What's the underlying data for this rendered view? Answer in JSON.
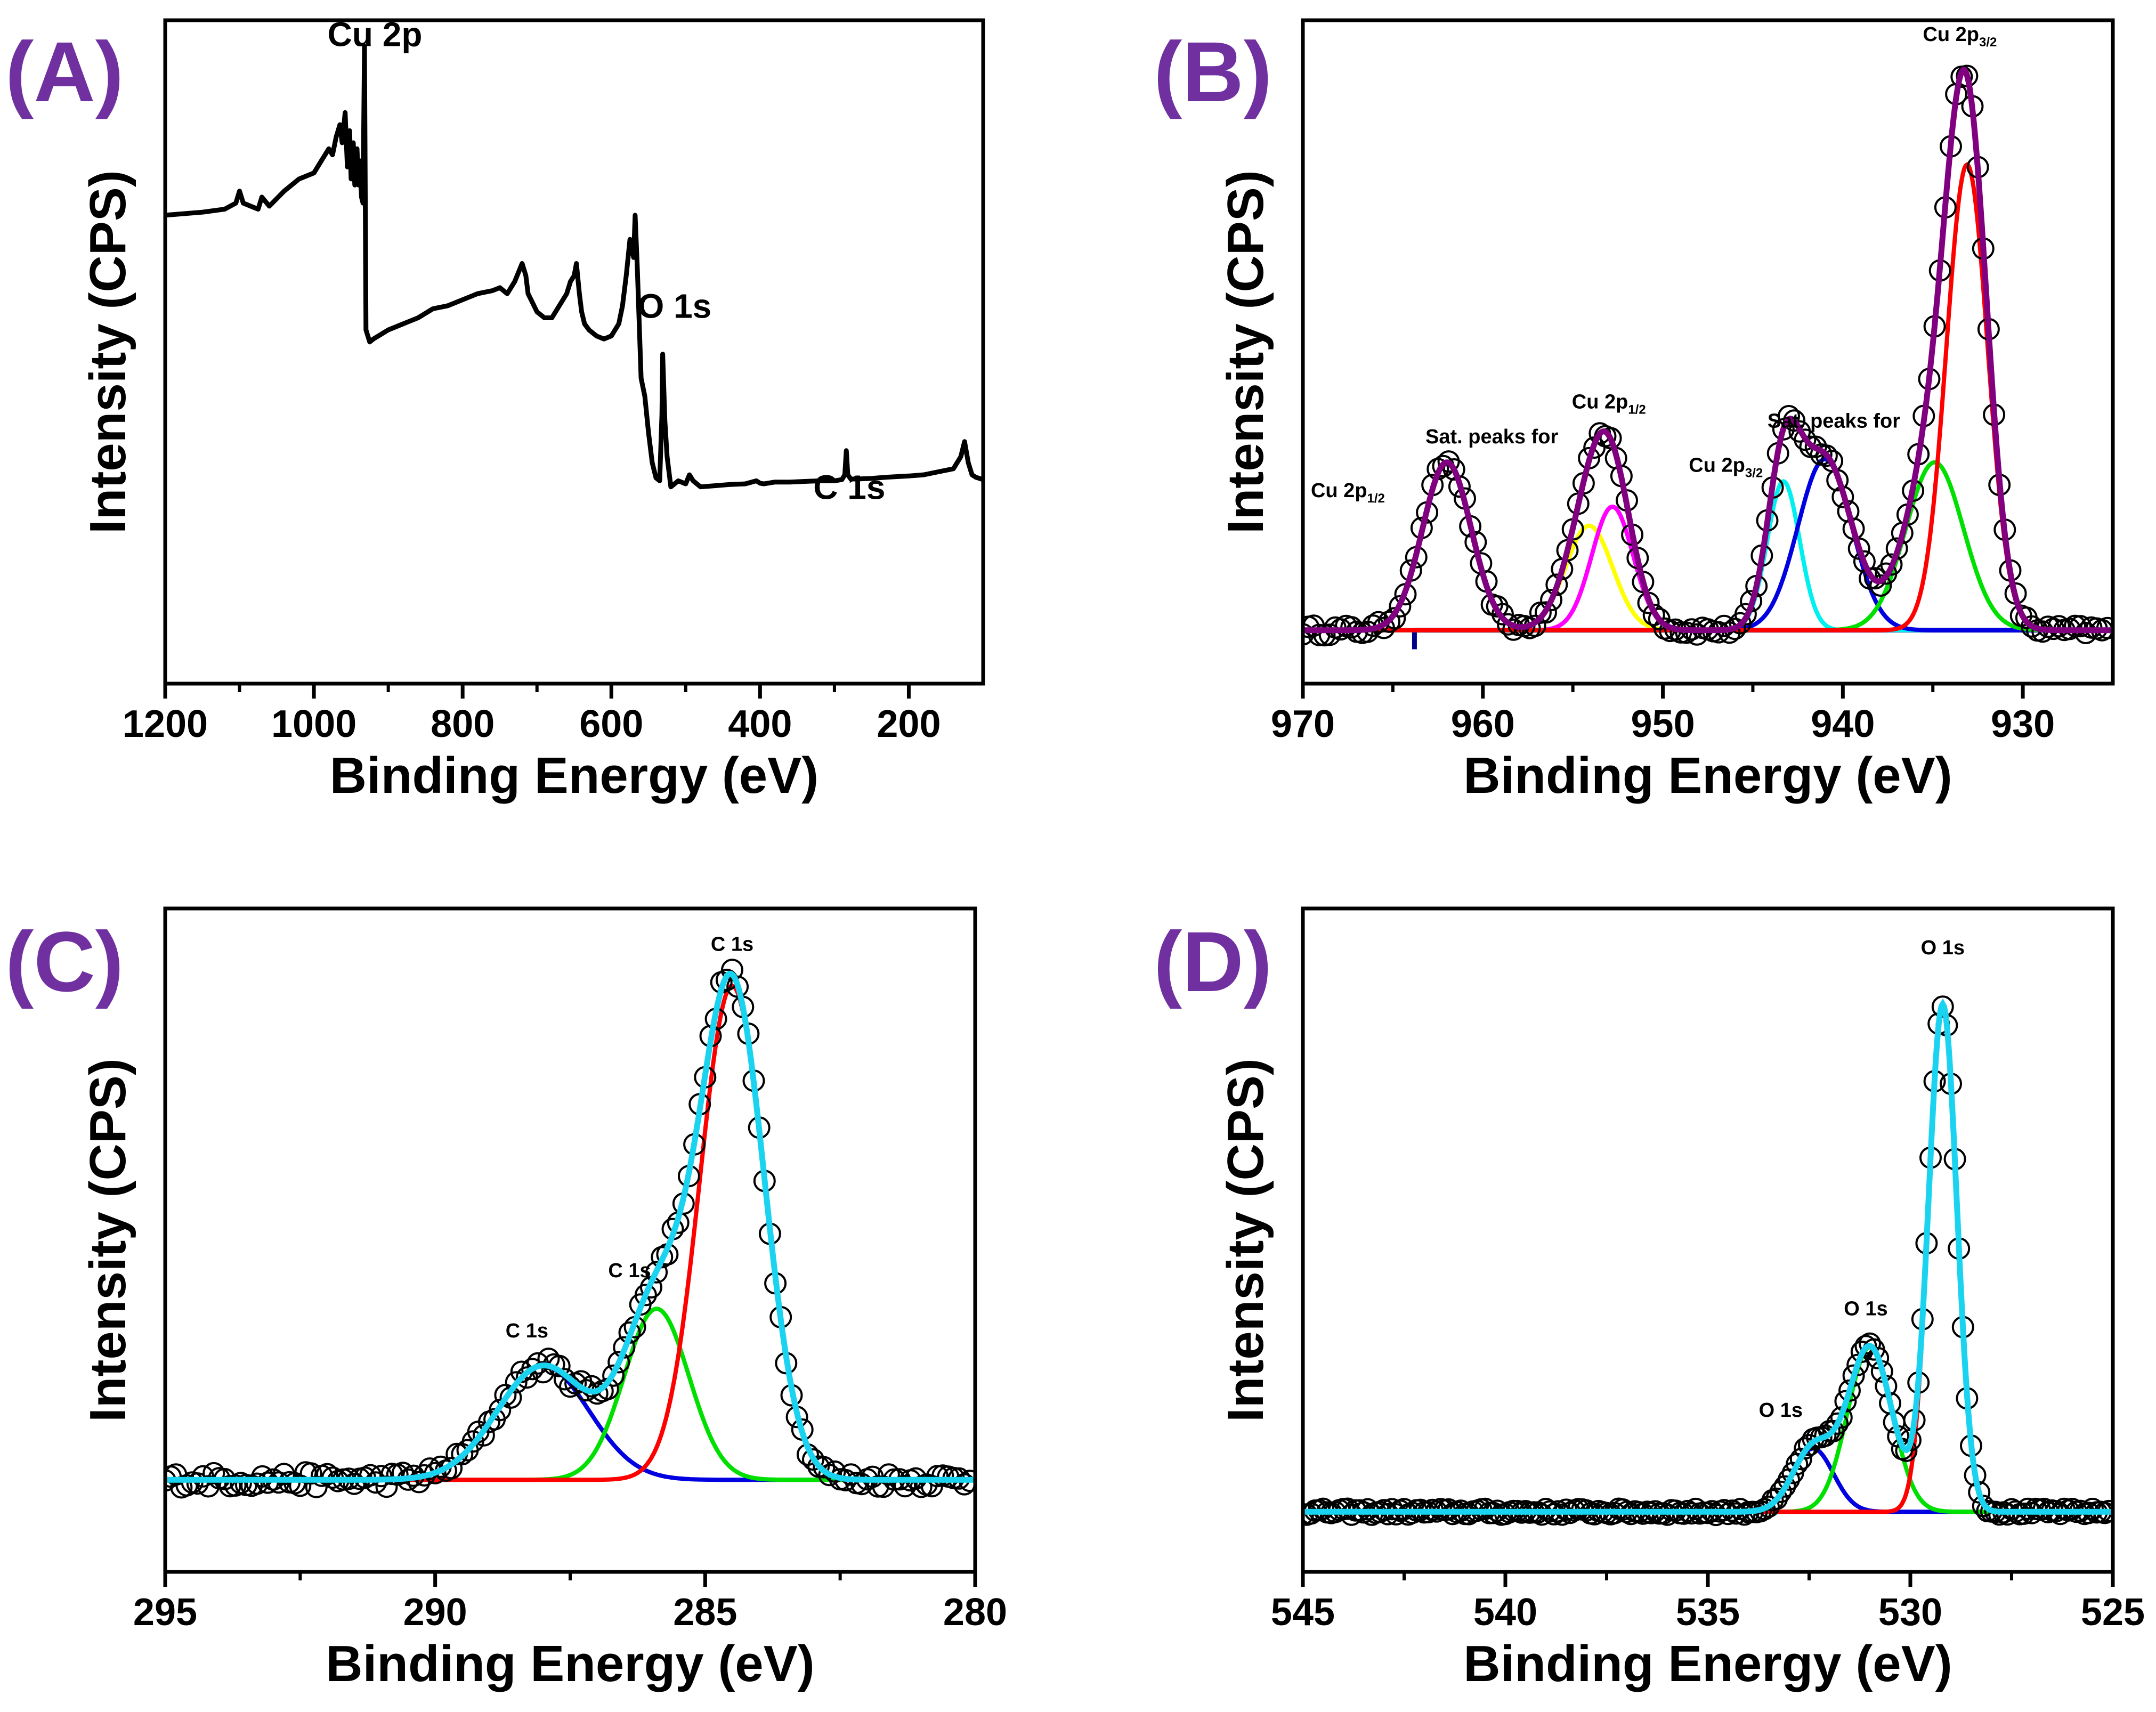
{
  "figure": {
    "panels": [
      "(A)",
      "(B)",
      "(C)",
      "(D)"
    ]
  },
  "colors": {
    "panel_letter": "#7030a0",
    "raw": "#000000",
    "envelope_B": "#800080",
    "envelope_CD": "#19d3f0",
    "red": "#ff0000",
    "green": "#00e000",
    "blue": "#0000e0",
    "cyan": "#00f0f0",
    "magenta": "#ff00ff",
    "yellow": "#ffff00",
    "baseline_B": "#00008b"
  },
  "chart_data": [
    {
      "id": "A",
      "type": "line",
      "label": "(A)",
      "xlabel": "Binding Energy (eV)",
      "ylabel": "Intensity (CPS)",
      "xlim": [
        1200,
        100
      ],
      "ylim": [
        0,
        100
      ],
      "xticks": [
        1200,
        1000,
        800,
        600,
        400,
        200
      ],
      "annotations": [
        {
          "text": "Cu 2p",
          "x": 918,
          "y": 99
        },
        {
          "text": "O 1s",
          "x": 515,
          "y": 54
        },
        {
          "text": "C 1s",
          "x": 280,
          "y": 24
        }
      ],
      "series": [
        {
          "name": "survey",
          "color": "#000000",
          "x": [
            1200,
            1150,
            1120,
            1105,
            1100,
            1095,
            1085,
            1075,
            1070,
            1060,
            1040,
            1020,
            1000,
            990,
            980,
            975,
            970,
            965,
            962,
            958,
            955,
            952,
            950,
            947,
            945,
            942,
            940,
            938,
            936,
            934,
            932,
            930,
            925,
            920,
            900,
            880,
            860,
            840,
            820,
            800,
            780,
            760,
            750,
            740,
            730,
            720,
            715,
            712,
            708,
            700,
            690,
            680,
            670,
            660,
            655,
            650,
            647,
            643,
            640,
            636,
            630,
            620,
            610,
            600,
            590,
            585,
            580,
            575,
            570,
            568,
            565,
            560,
            555,
            550,
            545,
            540,
            535,
            532,
            531,
            528,
            525,
            520,
            510,
            500,
            495,
            490,
            480,
            460,
            440,
            420,
            405,
            400,
            395,
            380,
            360,
            340,
            320,
            300,
            290,
            286,
            284,
            282,
            278,
            270,
            250,
            230,
            200,
            180,
            160,
            140,
            130,
            125,
            120,
            115,
            110,
            105,
            100
          ],
          "y": [
            71,
            71.5,
            72,
            73,
            75,
            73,
            72.5,
            72,
            74,
            72.5,
            75,
            77,
            78,
            80,
            82,
            81,
            84,
            86,
            83,
            88,
            79,
            85,
            77,
            83,
            76,
            82,
            76,
            80,
            74,
            73,
            99,
            52,
            50,
            50.5,
            52,
            53,
            54,
            55.5,
            56,
            57,
            58,
            58.5,
            59,
            58,
            60,
            63,
            61,
            58,
            57,
            55,
            54,
            54,
            56,
            58,
            60,
            61,
            63,
            58,
            55,
            53,
            52,
            51,
            50.5,
            51,
            53,
            56,
            61,
            67,
            64,
            71,
            62,
            44,
            41,
            35,
            30,
            27.5,
            27,
            38,
            48,
            37,
            31,
            26,
            27,
            26.5,
            28,
            27,
            26,
            26.2,
            26.4,
            26.5,
            27,
            26.6,
            26.5,
            26.8,
            26.8,
            26.9,
            27,
            27,
            27.2,
            28,
            32,
            28,
            27.3,
            27.3,
            27.4,
            27.6,
            27.8,
            28,
            28.5,
            29,
            31,
            33.5,
            30,
            28,
            27.6,
            27.4,
            27.2
          ]
        }
      ]
    },
    {
      "id": "B",
      "type": "line",
      "label": "(B)",
      "xlabel": "Binding Energy (eV)",
      "ylabel": "Intensity (CPS)",
      "xlim": [
        970,
        925
      ],
      "ylim": [
        0,
        100
      ],
      "xticks": [
        970,
        960,
        950,
        940,
        930
      ],
      "annotations": [
        {
          "text": "Cu 2p",
          "sub": "3/2",
          "x": 933.5,
          "y": 103
        },
        {
          "text": "Sat. peaks for",
          "x": 959.5,
          "y": 39.5
        },
        {
          "text": "Cu 2p",
          "sub": "1/2",
          "x": 967.5,
          "y": 31
        },
        {
          "text": "Cu 2p",
          "sub": "1/2",
          "x": 953,
          "y": 45
        },
        {
          "text": "Cu 2p",
          "sub": "3/2",
          "x": 946.5,
          "y": 35
        },
        {
          "text": "Sat. peaks for",
          "x": 940.5,
          "y": 42
        }
      ],
      "baseline": {
        "y": 10,
        "x_from": 963.8,
        "x_to": 925,
        "color": "#00008b"
      },
      "components": [
        {
          "name": "sat-1/2",
          "color": "#800080",
          "center": 962,
          "amp": 26.5,
          "sigma": 1.35
        },
        {
          "name": "yellow",
          "color": "#ffff00",
          "center": 954.1,
          "amp": 16.5,
          "sigma": 1.3
        },
        {
          "name": "magenta",
          "color": "#ff00ff",
          "center": 952.8,
          "amp": 19.5,
          "sigma": 1.15
        },
        {
          "name": "cyan",
          "color": "#00f0f0",
          "center": 943.3,
          "amp": 23.5,
          "sigma": 0.9
        },
        {
          "name": "blue",
          "color": "#0000e0",
          "center": 941.0,
          "amp": 27,
          "sigma": 1.5
        },
        {
          "name": "green",
          "color": "#00e000",
          "center": 934.9,
          "amp": 26.5,
          "sigma": 1.6
        },
        {
          "name": "red",
          "color": "#ff0000",
          "center": 933.1,
          "amp": 73.5,
          "sigma": 1.15
        }
      ],
      "envelope": {
        "color": "#800080"
      },
      "raw": {
        "x_from": 970,
        "x_to": 925.2,
        "step": 0.3,
        "noise": 0.8
      }
    },
    {
      "id": "C",
      "type": "line",
      "label": "(C)",
      "xlabel": "Binding Energy (eV)",
      "ylabel": "Intensity (CPS)",
      "xlim": [
        295,
        280
      ],
      "ylim": [
        0,
        100
      ],
      "xticks": [
        295,
        290,
        285,
        280
      ],
      "annotations": [
        {
          "text": "C 1s",
          "x": 284.5,
          "y": 97.5
        },
        {
          "text": "C 1s",
          "x": 286.4,
          "y": 46
        },
        {
          "text": "C 1s",
          "x": 288.3,
          "y": 36.5
        }
      ],
      "baseline": {
        "y": 14
      },
      "components": [
        {
          "name": "blue",
          "color": "#0000e0",
          "center": 288.0,
          "amp": 18,
          "sigma": 0.85
        },
        {
          "name": "green",
          "color": "#00e000",
          "center": 285.9,
          "amp": 27,
          "sigma": 0.6
        },
        {
          "name": "red",
          "color": "#ff0000",
          "center": 284.5,
          "amp": 78,
          "sigma": 0.6
        }
      ],
      "envelope": {
        "color": "#19d3f0"
      },
      "raw": {
        "x_from": 295,
        "x_to": 280,
        "step": 0.1,
        "noise": 1.2
      }
    },
    {
      "id": "D",
      "type": "line",
      "label": "(D)",
      "xlabel": "Binding Energy (eV)",
      "ylabel": "Intensity (CPS)",
      "xlim": [
        545,
        525
      ],
      "ylim": [
        0,
        100
      ],
      "xticks": [
        545,
        540,
        535,
        530,
        525
      ],
      "annotations": [
        {
          "text": "O 1s",
          "x": 529.2,
          "y": 98
        },
        {
          "text": "O 1s",
          "x": 531.1,
          "y": 41
        },
        {
          "text": "O 1s",
          "x": 533.2,
          "y": 25
        }
      ],
      "baseline": {
        "y": 10
      },
      "components": [
        {
          "name": "blue",
          "color": "#0000e0",
          "center": 532.4,
          "amp": 10,
          "sigma": 0.5
        },
        {
          "name": "green",
          "color": "#00e000",
          "center": 531.0,
          "amp": 26,
          "sigma": 0.55
        },
        {
          "name": "red",
          "color": "#ff0000",
          "center": 529.2,
          "amp": 80,
          "sigma": 0.35
        }
      ],
      "envelope": {
        "color": "#19d3f0"
      },
      "raw": {
        "x_from": 545,
        "x_to": 525,
        "step": 0.1,
        "noise": 0.5
      }
    }
  ]
}
